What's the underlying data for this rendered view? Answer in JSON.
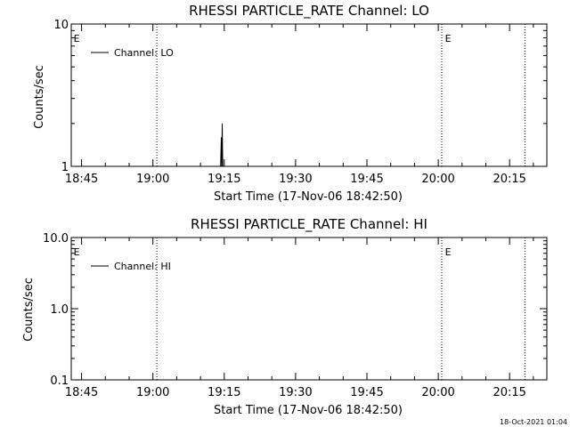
{
  "chart_data": [
    {
      "type": "line",
      "title": "RHESSI PARTICLE_RATE Channel: LO",
      "xlabel": "Start Time (17-Nov-06 18:42:50)",
      "ylabel": "Counts/sec",
      "yscale": "log",
      "ylim": [
        1,
        10
      ],
      "y_tick_labels": [
        {
          "v": 10,
          "label": "10"
        },
        {
          "v": 1,
          "label": "1"
        }
      ],
      "x_unit": "minutes",
      "xlim": [
        0,
        100
      ],
      "x_ticks": [
        {
          "t": 2.17,
          "label": "18:45"
        },
        {
          "t": 17.17,
          "label": "19:00"
        },
        {
          "t": 32.17,
          "label": "19:15"
        },
        {
          "t": 47.17,
          "label": "19:30"
        },
        {
          "t": 62.17,
          "label": "19:45"
        },
        {
          "t": 77.17,
          "label": "20:00"
        },
        {
          "t": 92.17,
          "label": "20:15"
        }
      ],
      "event_lines": [
        {
          "t": 18.0,
          "label": ""
        },
        {
          "t": 77.9,
          "label": ""
        },
        {
          "t": 95.4,
          "label": ""
        }
      ],
      "event_markers": [
        {
          "t": 0.3,
          "label": "E"
        },
        {
          "t": 78.4,
          "label": "E"
        }
      ],
      "grid": false,
      "legend_position": "top-left",
      "series": [
        {
          "name": "Channel: LO",
          "points": [
            [
              31.4,
              1.0
            ],
            [
              31.55,
              1.6
            ],
            [
              31.65,
              1.0
            ],
            [
              31.75,
              2.0
            ],
            [
              31.85,
              1.0
            ]
          ]
        }
      ]
    },
    {
      "type": "line",
      "title": "RHESSI PARTICLE_RATE Channel: HI",
      "xlabel": "Start Time (17-Nov-06 18:42:50)",
      "ylabel": "Counts/sec",
      "yscale": "log",
      "ylim": [
        0.1,
        10
      ],
      "y_tick_labels": [
        {
          "v": 10,
          "label": "10.0"
        },
        {
          "v": 1,
          "label": "1.0"
        },
        {
          "v": 0.1,
          "label": "0.1"
        }
      ],
      "x_unit": "minutes",
      "xlim": [
        0,
        100
      ],
      "x_ticks": [
        {
          "t": 2.17,
          "label": "18:45"
        },
        {
          "t": 17.17,
          "label": "19:00"
        },
        {
          "t": 32.17,
          "label": "19:15"
        },
        {
          "t": 47.17,
          "label": "19:30"
        },
        {
          "t": 62.17,
          "label": "19:45"
        },
        {
          "t": 77.17,
          "label": "20:00"
        },
        {
          "t": 92.17,
          "label": "20:15"
        }
      ],
      "event_lines": [
        {
          "t": 18.0,
          "label": ""
        },
        {
          "t": 77.9,
          "label": ""
        },
        {
          "t": 95.4,
          "label": ""
        }
      ],
      "event_markers": [
        {
          "t": 0.3,
          "label": "E"
        },
        {
          "t": 78.4,
          "label": "E"
        }
      ],
      "grid": false,
      "legend_position": "top-left",
      "series": [
        {
          "name": "Channel: HI",
          "points": []
        }
      ]
    }
  ],
  "footer": {
    "timestamp": "18-Oct-2021 01:04"
  }
}
